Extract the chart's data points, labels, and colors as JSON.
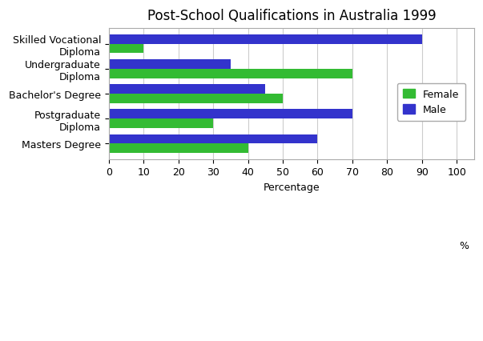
{
  "title": "Post-School Qualifications in Australia 1999",
  "categories": [
    "Skilled Vocational\nDiploma",
    "Undergraduate\nDiploma",
    "Bachelor's Degree",
    "Postgraduate\nDiploma",
    "Masters Degree"
  ],
  "female_values": [
    10,
    70,
    50,
    30,
    40
  ],
  "male_values": [
    90,
    35,
    45,
    70,
    60
  ],
  "female_color": "#33bb33",
  "male_color": "#3333cc",
  "xlabel": "Percentage",
  "xlim": [
    0,
    105
  ],
  "xticks": [
    0,
    10,
    20,
    30,
    40,
    50,
    60,
    70,
    80,
    90,
    100
  ],
  "xtick_labels": [
    "0",
    "10",
    "20",
    "30",
    "40",
    "50",
    "60",
    "70",
    "80",
    "90",
    "100"
  ],
  "bar_height": 0.38,
  "background_color": "#ffffff",
  "legend_labels": [
    "Female",
    "Male"
  ],
  "title_fontsize": 12,
  "axis_fontsize": 9,
  "ylabel_fontsize": 9
}
